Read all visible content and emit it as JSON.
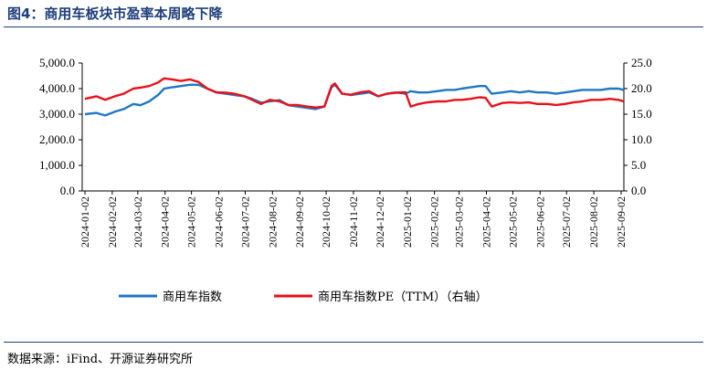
{
  "header": {
    "title": "图4：商用车板块市盈率本周略下降"
  },
  "footer": {
    "source": "数据来源：iFind、开源证券研究所"
  },
  "colors": {
    "index": "#1f77c4",
    "pe": "#e8101a",
    "title": "#1f3f7a"
  },
  "chart_data": {
    "type": "line",
    "title": "",
    "xlabel": "",
    "ylabel": "",
    "y_left": {
      "ticks": [
        "0.0",
        "1,000.0",
        "2,000.0",
        "3,000.0",
        "4,000.0",
        "5,000.0"
      ],
      "range": [
        0,
        5000
      ]
    },
    "y_right": {
      "ticks": [
        "0.0",
        "5.0",
        "10.0",
        "15.0",
        "20.0",
        "25.0"
      ],
      "range": [
        0,
        25
      ]
    },
    "x_ticks": [
      "2024-01-02",
      "2024-02-02",
      "2024-03-02",
      "2024-04-02",
      "2024-05-02",
      "2024-06-02",
      "2024-07-02",
      "2024-08-02",
      "2024-09-02",
      "2024-10-02",
      "2024-11-02",
      "2024-12-02",
      "2025-01-02",
      "2025-02-02",
      "2025-03-02",
      "2025-04-02",
      "2025-05-02",
      "2025-06-02",
      "2025-07-02",
      "2025-08-02",
      "2025-09-02"
    ],
    "legend_position": "bottom",
    "grid": false,
    "series": [
      {
        "name": "商用车指数",
        "axis": "left",
        "x": [
          "2024-01-02",
          "2024-01-15",
          "2024-01-25",
          "2024-02-05",
          "2024-02-15",
          "2024-02-26",
          "2024-03-05",
          "2024-03-15",
          "2024-03-25",
          "2024-04-01",
          "2024-04-10",
          "2024-04-20",
          "2024-04-30",
          "2024-05-10",
          "2024-05-20",
          "2024-05-30",
          "2024-06-10",
          "2024-06-20",
          "2024-07-01",
          "2024-07-10",
          "2024-07-20",
          "2024-07-30",
          "2024-08-10",
          "2024-08-20",
          "2024-08-30",
          "2024-09-10",
          "2024-09-20",
          "2024-09-30",
          "2024-10-08",
          "2024-10-12",
          "2024-10-20",
          "2024-10-30",
          "2024-11-10",
          "2024-11-20",
          "2024-11-30",
          "2024-12-10",
          "2024-12-20",
          "2024-12-31",
          "2025-01-06",
          "2025-01-15",
          "2025-01-25",
          "2025-02-05",
          "2025-02-15",
          "2025-02-25",
          "2025-03-05",
          "2025-03-15",
          "2025-03-25",
          "2025-04-01",
          "2025-04-08",
          "2025-04-20",
          "2025-04-30",
          "2025-05-10",
          "2025-05-20",
          "2025-05-30",
          "2025-06-10",
          "2025-06-20",
          "2025-06-30",
          "2025-07-10",
          "2025-07-20",
          "2025-07-30",
          "2025-08-10",
          "2025-08-20",
          "2025-08-30",
          "2025-09-05"
        ],
        "values": [
          3000,
          3050,
          2950,
          3100,
          3200,
          3400,
          3350,
          3500,
          3750,
          4000,
          4050,
          4100,
          4150,
          4150,
          4000,
          3850,
          3800,
          3750,
          3700,
          3600,
          3450,
          3500,
          3550,
          3350,
          3300,
          3250,
          3200,
          3300,
          4050,
          4150,
          3800,
          3750,
          3800,
          3850,
          3700,
          3800,
          3850,
          3800,
          3900,
          3850,
          3850,
          3900,
          3950,
          3950,
          4000,
          4050,
          4100,
          4100,
          3800,
          3850,
          3900,
          3850,
          3900,
          3850,
          3850,
          3800,
          3850,
          3900,
          3950,
          3950,
          3950,
          4000,
          4000,
          3950
        ]
      },
      {
        "name": "商用车指数PE（TTM）（右轴）",
        "axis": "right",
        "x": [
          "2024-01-02",
          "2024-01-15",
          "2024-01-25",
          "2024-02-05",
          "2024-02-15",
          "2024-02-26",
          "2024-03-05",
          "2024-03-15",
          "2024-03-25",
          "2024-04-01",
          "2024-04-10",
          "2024-04-20",
          "2024-04-30",
          "2024-05-10",
          "2024-05-20",
          "2024-05-30",
          "2024-06-10",
          "2024-06-20",
          "2024-07-01",
          "2024-07-10",
          "2024-07-20",
          "2024-07-30",
          "2024-08-10",
          "2024-08-20",
          "2024-08-30",
          "2024-09-10",
          "2024-09-20",
          "2024-09-30",
          "2024-10-08",
          "2024-10-12",
          "2024-10-20",
          "2024-10-30",
          "2024-11-10",
          "2024-11-20",
          "2024-11-30",
          "2024-12-10",
          "2024-12-20",
          "2024-12-31",
          "2025-01-06",
          "2025-01-15",
          "2025-01-25",
          "2025-02-05",
          "2025-02-15",
          "2025-02-25",
          "2025-03-05",
          "2025-03-15",
          "2025-03-25",
          "2025-04-01",
          "2025-04-08",
          "2025-04-20",
          "2025-04-30",
          "2025-05-10",
          "2025-05-20",
          "2025-05-30",
          "2025-06-10",
          "2025-06-20",
          "2025-06-30",
          "2025-07-10",
          "2025-07-20",
          "2025-07-30",
          "2025-08-10",
          "2025-08-20",
          "2025-08-30",
          "2025-09-05"
        ],
        "values": [
          18.0,
          18.5,
          17.8,
          18.5,
          19.0,
          20.0,
          20.2,
          20.5,
          21.2,
          22.0,
          21.8,
          21.5,
          21.8,
          21.3,
          20.0,
          19.3,
          19.2,
          19.0,
          18.5,
          17.8,
          17.0,
          17.8,
          17.5,
          16.8,
          16.8,
          16.5,
          16.3,
          16.5,
          20.5,
          21.0,
          19.0,
          18.8,
          19.3,
          19.5,
          18.5,
          19.0,
          19.2,
          19.3,
          16.5,
          17.0,
          17.3,
          17.5,
          17.5,
          17.8,
          17.8,
          18.0,
          18.3,
          18.2,
          16.5,
          17.2,
          17.3,
          17.2,
          17.3,
          17.0,
          17.0,
          16.8,
          17.0,
          17.3,
          17.5,
          17.8,
          17.8,
          18.0,
          17.8,
          17.5
        ]
      }
    ]
  }
}
